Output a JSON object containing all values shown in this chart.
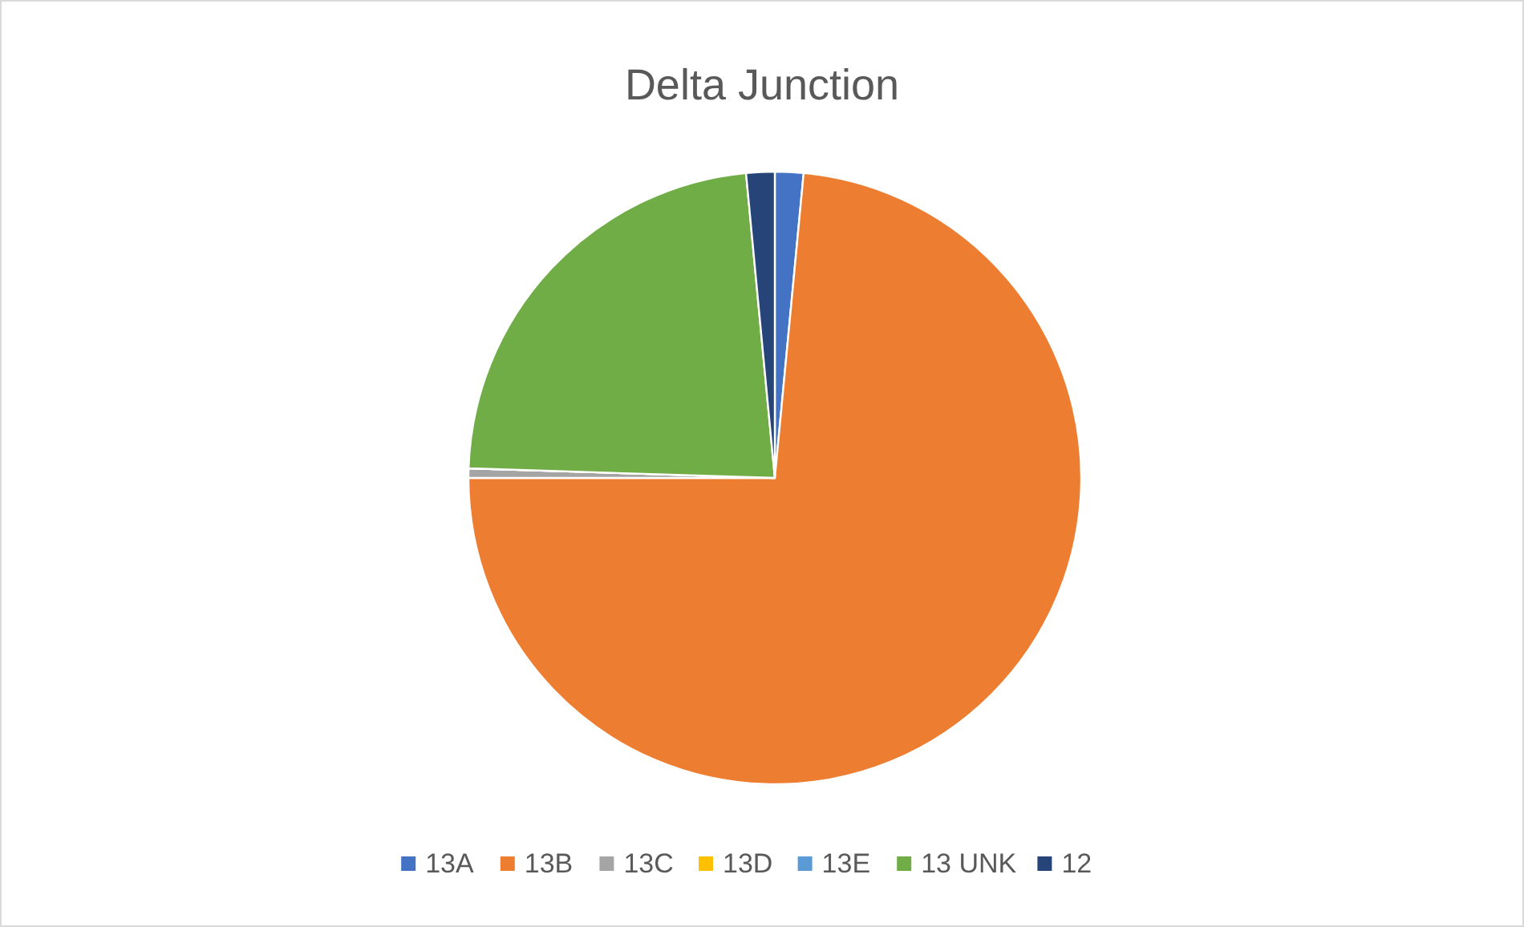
{
  "chart_data": {
    "type": "pie",
    "title": "Delta Junction",
    "categories": [
      "13A",
      "13B",
      "13C",
      "13D",
      "13E",
      "13 UNK",
      "12"
    ],
    "values": [
      1.5,
      73.5,
      0.5,
      0,
      0,
      23,
      1.5
    ],
    "colors": [
      "#4472c4",
      "#ed7d31",
      "#a5a5a5",
      "#ffc000",
      "#5b9bd5",
      "#70ad47",
      "#264478"
    ],
    "legend": "bottom"
  }
}
